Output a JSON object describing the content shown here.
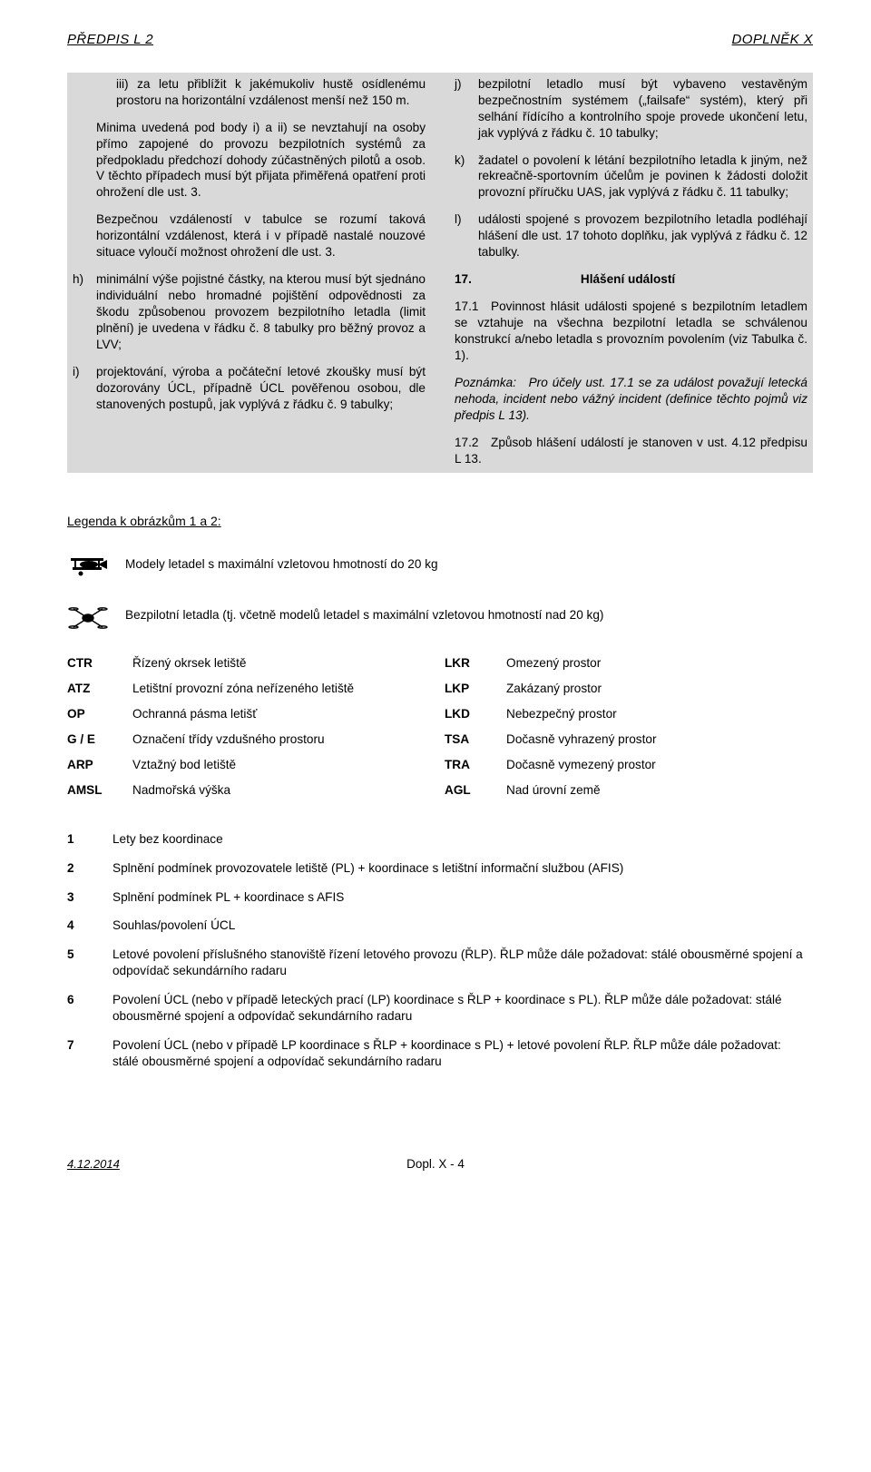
{
  "header": {
    "left": "PŘEDPIS L 2",
    "right": "DOPLNĚK X"
  },
  "left_col": {
    "iii": "iii) za letu přiblížit k jakémukoliv hustě osídlenému prostoru na horizontální vzdálenost menší než 150 m.",
    "minima": "Minima uvedená pod body i) a ii) se nevztahují na osoby přímo zapojené do provozu bezpilotních systémů za předpokladu předchozí dohody zúčastněných pilotů a osob. V těchto případech musí být přijata přiměřená opatření proti ohrožení dle ust. 3.",
    "bezpecnou": "Bezpečnou vzdáleností v tabulce se rozumí taková horizontální vzdálenost, která i v případě nastalé nouzové situace vyloučí možnost ohrožení dle ust. 3.",
    "h_lbl": "h)",
    "h": "minimální výše pojistné částky, na kterou musí být sjednáno individuální nebo hromadné pojištění odpovědnosti za škodu způsobenou provozem bezpilotního letadla (limit plnění) je uvedena v řádku č. 8 tabulky pro běžný provoz a LVV;",
    "i_lbl": "i)",
    "i": "projektování, výroba a počáteční letové zkoušky musí být dozorovány ÚCL, případně ÚCL pověřenou osobou, dle stanovených postupů, jak vyplývá z řádku č. 9 tabulky;"
  },
  "right_col": {
    "j_lbl": "j)",
    "j": "bezpilotní letadlo musí být vybaveno vestavěným bezpečnostním systémem („failsafe“ systém), který při selhání řídícího a kontrolního spoje provede ukončení letu, jak vyplývá z řádku č. 10 tabulky;",
    "k_lbl": "k)",
    "k": "žadatel o povolení k létání bezpilotního letadla k jiným, než rekreačně-sportovním účelům je povinen k žádosti doložit provozní příručku UAS, jak vyplývá z řádku č. 11 tabulky;",
    "l_lbl": "l)",
    "l": "události spojené s provozem bezpilotního letadla podléhají hlášení dle ust. 17 tohoto doplňku, jak vyplývá z řádku č. 12 tabulky.",
    "sec17_num": "17.",
    "sec17_title": "Hlášení událostí",
    "p171": "17.1 Povinnost hlásit události spojené s bezpilotním letadlem se vztahuje na všechna bezpilotní letadla se schválenou konstrukcí a/nebo letadla s provozním povolením (viz Tabulka č. 1).",
    "note": "Poznámka: Pro účely ust. 17.1 se za událost považují letecká nehoda, incident nebo vážný incident (definice těchto pojmů viz předpis L 13).",
    "p172": "17.2 Způsob hlášení událostí je stanoven v ust. 4.12 předpisu L 13."
  },
  "legend": {
    "title": "Legenda k obrázkům 1 a 2:",
    "plane_caption": "Modely letadel s maximální vzletovou hmotností do 20 kg",
    "drone_caption": "Bezpilotní letadla (tj. včetně modelů letadel s maximální vzletovou hmotností nad 20 kg)"
  },
  "abbrev": [
    [
      "CTR",
      "Řízený okrsek letiště",
      "LKR",
      "Omezený prostor"
    ],
    [
      "ATZ",
      "Letištní provozní zóna neřízeného letiště",
      "LKP",
      "Zakázaný prostor"
    ],
    [
      "OP",
      "Ochranná pásma letišť",
      "LKD",
      "Nebezpečný prostor"
    ],
    [
      "G / E",
      "Označení třídy vzdušného prostoru",
      "TSA",
      "Dočasně vyhrazený prostor"
    ],
    [
      "ARP",
      "Vztažný bod letiště",
      "TRA",
      "Dočasně vymezený prostor"
    ],
    [
      "AMSL",
      "Nadmořská výška",
      "AGL",
      "Nad úrovní země"
    ]
  ],
  "numbered": [
    [
      "1",
      "Lety bez koordinace"
    ],
    [
      "2",
      "Splnění podmínek provozovatele letiště (PL) + koordinace s letištní informační službou (AFIS)"
    ],
    [
      "3",
      "Splnění podmínek PL + koordinace s AFIS"
    ],
    [
      "4",
      "Souhlas/povolení ÚCL"
    ],
    [
      "5",
      "Letové povolení příslušného stanoviště řízení letového provozu (ŘLP). ŘLP může dále požadovat: stálé obousměrné spojení a odpovídač sekundárního radaru"
    ],
    [
      "6",
      "Povolení ÚCL (nebo v případě leteckých prací (LP) koordinace s ŘLP + koordinace s PL). ŘLP může dále požadovat: stálé obousměrné spojení a odpovídač sekundárního radaru"
    ],
    [
      "7",
      "Povolení ÚCL (nebo v případě LP koordinace s ŘLP + koordinace s PL) + letové povolení ŘLP. ŘLP může dále požadovat: stálé obousměrné spojení a odpovídač sekundárního radaru"
    ]
  ],
  "footer": {
    "date": "4.12.2014",
    "page": "Dopl. X - 4"
  },
  "colors": {
    "gray_bg": "#d9d9d9",
    "text": "#000000",
    "page_bg": "#ffffff"
  }
}
